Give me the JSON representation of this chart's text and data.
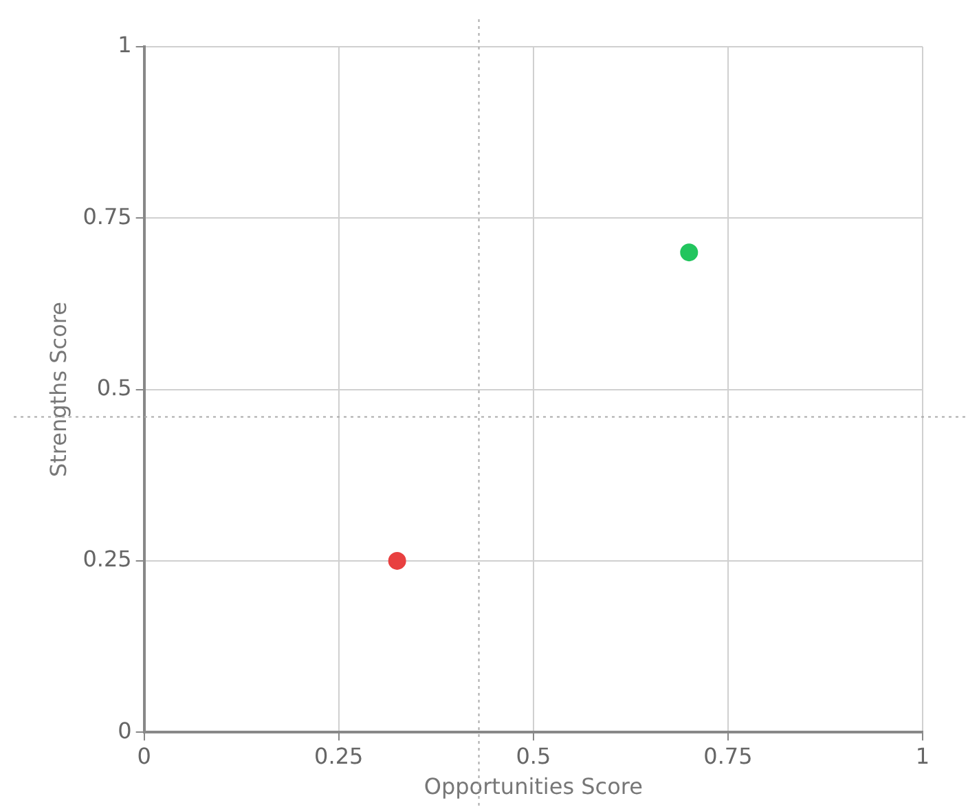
{
  "chart_data": {
    "type": "scatter",
    "xlabel": "Opportunities Score",
    "ylabel": "Strengths Score",
    "x": [
      0.325,
      0.7
    ],
    "values": [
      0.25,
      0.7
    ],
    "colors": [
      "#e84040",
      "#22c55e"
    ],
    "xlim": [
      0,
      1
    ],
    "ylim": [
      0,
      1
    ],
    "xticks": [
      0,
      0.25,
      0.5,
      0.75,
      1
    ],
    "yticks": [
      0,
      0.25,
      0.5,
      0.75,
      1
    ],
    "grid": true,
    "marker": "circle",
    "legend": false,
    "ref_lines": [
      {
        "axis": "x",
        "value": 0.43,
        "color": "#aaaaaa",
        "line_style": "dotted"
      },
      {
        "axis": "y",
        "value": 0.46,
        "color": "#aaaaaa",
        "line_style": "dotted"
      }
    ]
  }
}
